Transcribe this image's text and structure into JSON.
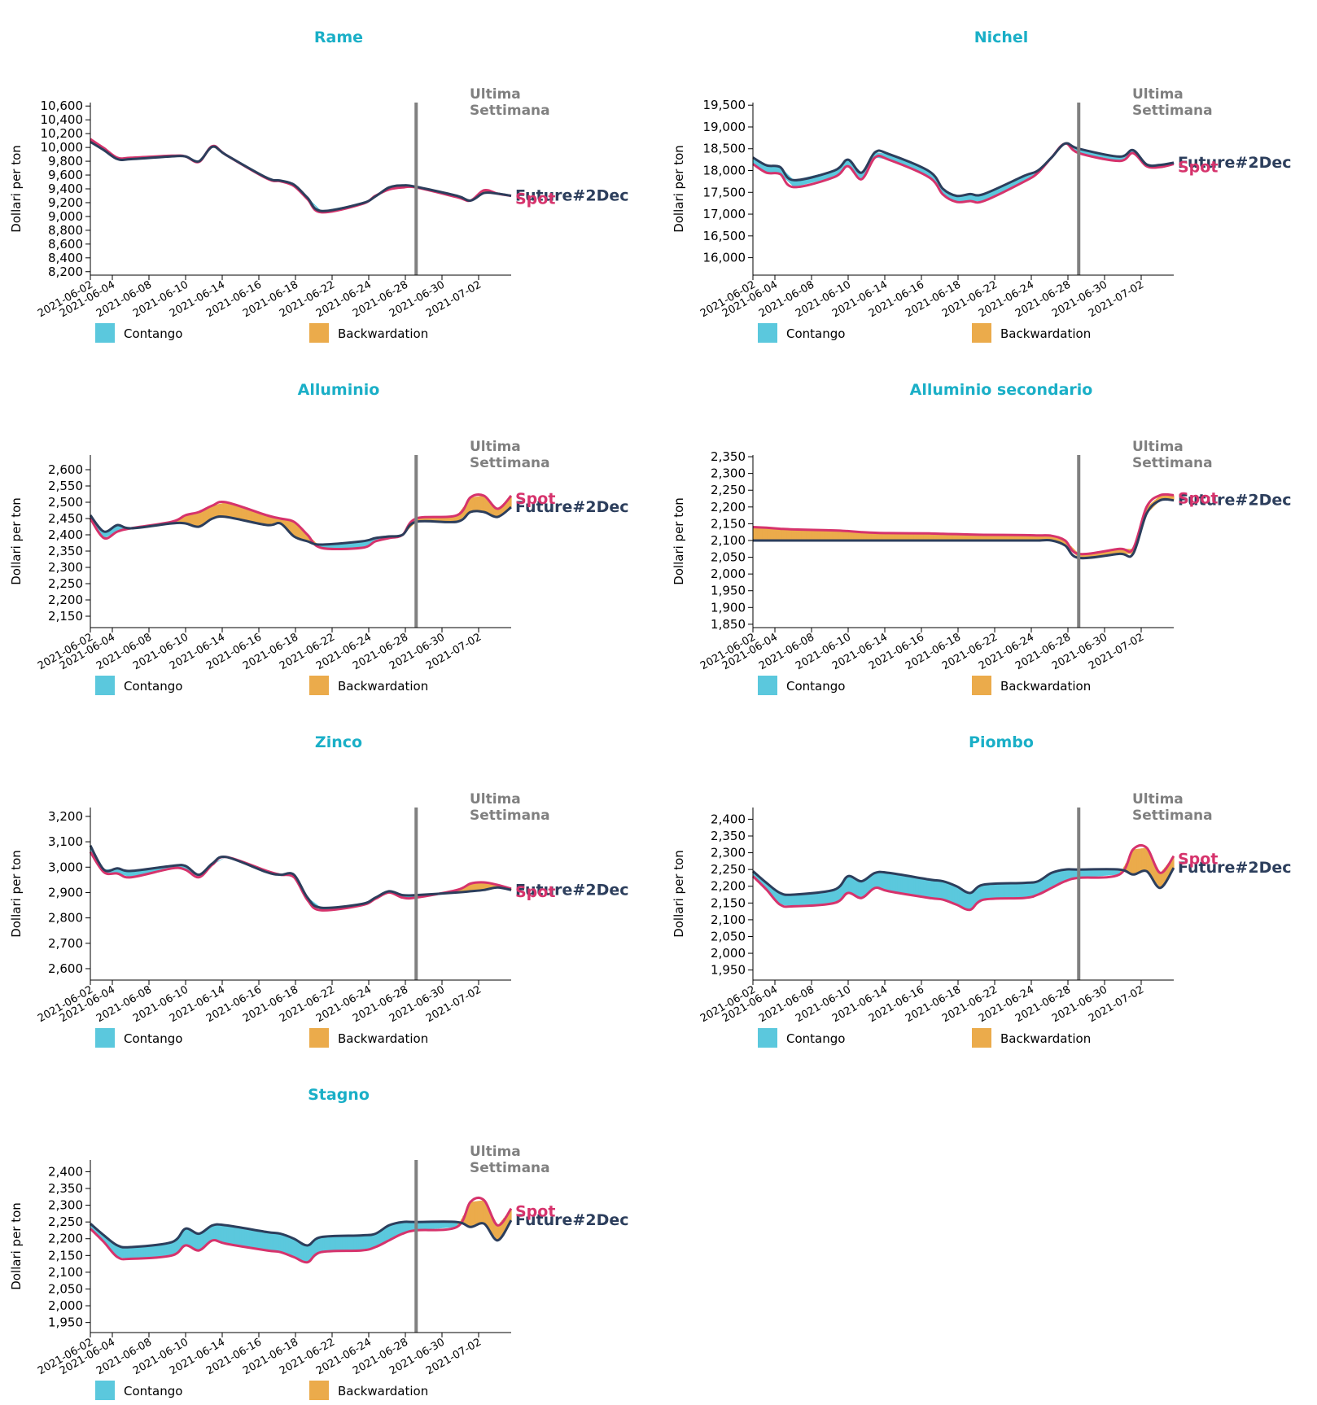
{
  "common": {
    "ylabel": "Dollari per ton",
    "marker_label_line1": "Ultima",
    "marker_label_line2": "Settimana",
    "marker_date": "2021-06-25",
    "legend": [
      "Contango",
      "Backwardation"
    ],
    "series_names": [
      "Spot",
      "Future#2Dec"
    ],
    "colors": {
      "title": "#1aafc7",
      "spot": "#d6336c",
      "future": "#2c3e5c",
      "contango": "#5bc8dd",
      "backwardation": "#ebab4b",
      "marker": "#808080",
      "marker_text": "#808080"
    },
    "x_ticks": [
      "2021-06-02",
      "2021-06-04",
      "2021-06-08",
      "2021-06-10",
      "2021-06-14",
      "2021-06-16",
      "2021-06-18",
      "2021-06-22",
      "2021-06-24",
      "2021-06-28",
      "2021-06-30",
      "2021-07-02"
    ]
  },
  "chart_data": [
    {
      "type": "area",
      "title": "Rame",
      "ylim": [
        8150,
        10650
      ],
      "y_ticks": [
        "8,200",
        "8,400",
        "8,600",
        "8,800",
        "9,000",
        "9,200",
        "9,400",
        "9,600",
        "9,800",
        "10,000",
        "10,200",
        "10,400",
        "10,600"
      ],
      "x": [
        "2021-06-01",
        "2021-06-02",
        "2021-06-03",
        "2021-06-04",
        "2021-06-07",
        "2021-06-08",
        "2021-06-09",
        "2021-06-10",
        "2021-06-11",
        "2021-06-14",
        "2021-06-15",
        "2021-06-16",
        "2021-06-17",
        "2021-06-18",
        "2021-06-21",
        "2021-06-22",
        "2021-06-23",
        "2021-06-24",
        "2021-06-25",
        "2021-06-28",
        "2021-06-29",
        "2021-06-30",
        "2021-07-01",
        "2021-07-02"
      ],
      "series": [
        {
          "name": "Spot",
          "values": [
            10120,
            9990,
            9850,
            9850,
            9880,
            9870,
            9790,
            10020,
            9890,
            9550,
            9510,
            9440,
            9250,
            9060,
            9180,
            9300,
            9390,
            9420,
            9420,
            9280,
            9230,
            9380,
            9330,
            9300
          ]
        },
        {
          "name": "Future#2Dec",
          "values": [
            10080,
            9960,
            9830,
            9830,
            9870,
            9870,
            9800,
            10010,
            9890,
            9560,
            9520,
            9460,
            9270,
            9080,
            9190,
            9290,
            9420,
            9450,
            9430,
            9300,
            9230,
            9340,
            9330,
            9300
          ]
        }
      ]
    },
    {
      "type": "area",
      "title": "Nichel",
      "ylim": [
        15600,
        19560
      ],
      "y_ticks": [
        "16,000",
        "16,500",
        "17,000",
        "17,500",
        "18,000",
        "18,500",
        "19,000",
        "19,500"
      ],
      "x": [
        "2021-06-01",
        "2021-06-02",
        "2021-06-03",
        "2021-06-04",
        "2021-06-07",
        "2021-06-08",
        "2021-06-09",
        "2021-06-10",
        "2021-06-11",
        "2021-06-14",
        "2021-06-15",
        "2021-06-16",
        "2021-06-17",
        "2021-06-18",
        "2021-06-21",
        "2021-06-22",
        "2021-06-23",
        "2021-06-24",
        "2021-06-25",
        "2021-06-28",
        "2021-06-29",
        "2021-06-30",
        "2021-07-01",
        "2021-07-02"
      ],
      "series": [
        {
          "name": "Spot",
          "values": [
            18150,
            17950,
            17920,
            17620,
            17850,
            18100,
            17800,
            18300,
            18250,
            17840,
            17450,
            17280,
            17300,
            17300,
            17750,
            17950,
            18300,
            18620,
            18400,
            18220,
            18400,
            18100,
            18080,
            18150
          ]
        },
        {
          "name": "Future#2Dec",
          "values": [
            18300,
            18120,
            18080,
            17780,
            18000,
            18250,
            17950,
            18420,
            18380,
            17980,
            17580,
            17420,
            17460,
            17460,
            17880,
            18000,
            18300,
            18620,
            18500,
            18320,
            18470,
            18140,
            18130,
            18180
          ]
        }
      ]
    },
    {
      "type": "area",
      "title": "Alluminio",
      "ylim": [
        2115,
        2645
      ],
      "y_ticks": [
        "2,150",
        "2,200",
        "2,250",
        "2,300",
        "2,350",
        "2,400",
        "2,450",
        "2,500",
        "2,550",
        "2,600"
      ],
      "x": [
        "2021-06-01",
        "2021-06-02",
        "2021-06-03",
        "2021-06-04",
        "2021-06-07",
        "2021-06-08",
        "2021-06-09",
        "2021-06-10",
        "2021-06-11",
        "2021-06-14",
        "2021-06-15",
        "2021-06-16",
        "2021-06-17",
        "2021-06-18",
        "2021-06-21",
        "2021-06-22",
        "2021-06-23",
        "2021-06-24",
        "2021-06-25",
        "2021-06-28",
        "2021-06-29",
        "2021-06-30",
        "2021-07-01",
        "2021-07-02"
      ],
      "series": [
        {
          "name": "Spot",
          "values": [
            2450,
            2390,
            2410,
            2420,
            2440,
            2460,
            2470,
            2490,
            2500,
            2460,
            2450,
            2440,
            2400,
            2360,
            2360,
            2380,
            2390,
            2400,
            2450,
            2460,
            2515,
            2520,
            2480,
            2520
          ]
        },
        {
          "name": "Future#2Dec",
          "values": [
            2460,
            2410,
            2430,
            2420,
            2435,
            2435,
            2425,
            2450,
            2455,
            2430,
            2435,
            2395,
            2380,
            2370,
            2380,
            2390,
            2395,
            2400,
            2440,
            2440,
            2470,
            2470,
            2455,
            2485
          ]
        }
      ]
    },
    {
      "type": "area",
      "title": "Alluminio secondario",
      "ylim": [
        1840,
        2355
      ],
      "y_ticks": [
        "1,850",
        "1,900",
        "1,950",
        "2,000",
        "2,050",
        "2,100",
        "2,150",
        "2,200",
        "2,250",
        "2,300",
        "2,350"
      ],
      "x": [
        "2021-06-01",
        "2021-06-02",
        "2021-06-03",
        "2021-06-04",
        "2021-06-07",
        "2021-06-08",
        "2021-06-09",
        "2021-06-10",
        "2021-06-11",
        "2021-06-14",
        "2021-06-15",
        "2021-06-16",
        "2021-06-17",
        "2021-06-18",
        "2021-06-21",
        "2021-06-22",
        "2021-06-23",
        "2021-06-24",
        "2021-06-25",
        "2021-06-28",
        "2021-06-29",
        "2021-06-30",
        "2021-07-01",
        "2021-07-02"
      ],
      "series": [
        {
          "name": "Spot",
          "values": [
            2140,
            2138,
            2135,
            2133,
            2130,
            2128,
            2125,
            2123,
            2122,
            2121,
            2120,
            2119,
            2118,
            2117,
            2116,
            2115,
            2114,
            2100,
            2060,
            2075,
            2075,
            2200,
            2235,
            2235
          ]
        },
        {
          "name": "Future#2Dec",
          "values": [
            2100,
            2100,
            2100,
            2100,
            2100,
            2100,
            2100,
            2100,
            2100,
            2100,
            2100,
            2100,
            2100,
            2100,
            2100,
            2100,
            2100,
            2085,
            2048,
            2060,
            2060,
            2180,
            2220,
            2220
          ]
        }
      ]
    },
    {
      "type": "area",
      "title": "Zinco",
      "ylim": [
        2555,
        3235
      ],
      "y_ticks": [
        "2,600",
        "2,700",
        "2,800",
        "2,900",
        "3,000",
        "3,100",
        "3,200"
      ],
      "x": [
        "2021-06-01",
        "2021-06-02",
        "2021-06-03",
        "2021-06-04",
        "2021-06-07",
        "2021-06-08",
        "2021-06-09",
        "2021-06-10",
        "2021-06-11",
        "2021-06-14",
        "2021-06-15",
        "2021-06-16",
        "2021-06-17",
        "2021-06-18",
        "2021-06-21",
        "2021-06-22",
        "2021-06-23",
        "2021-06-24",
        "2021-06-25",
        "2021-06-28",
        "2021-06-29",
        "2021-06-30",
        "2021-07-01",
        "2021-07-02"
      ],
      "series": [
        {
          "name": "Spot",
          "values": [
            3060,
            2980,
            2975,
            2960,
            2995,
            2990,
            2960,
            3010,
            3040,
            2985,
            2970,
            2960,
            2870,
            2830,
            2850,
            2875,
            2900,
            2880,
            2880,
            2910,
            2935,
            2940,
            2930,
            2915
          ]
        },
        {
          "name": "Future#2Dec",
          "values": [
            3085,
            2990,
            2995,
            2985,
            3005,
            3005,
            2970,
            3015,
            3040,
            2980,
            2970,
            2970,
            2880,
            2840,
            2855,
            2880,
            2905,
            2890,
            2890,
            2900,
            2905,
            2910,
            2920,
            2910
          ]
        }
      ]
    },
    {
      "type": "area",
      "title": "Piombo",
      "ylim": [
        1920,
        2435
      ],
      "y_ticks": [
        "1,950",
        "2,000",
        "2,050",
        "2,100",
        "2,150",
        "2,200",
        "2,250",
        "2,300",
        "2,350",
        "2,400"
      ],
      "x": [
        "2021-06-01",
        "2021-06-02",
        "2021-06-03",
        "2021-06-04",
        "2021-06-07",
        "2021-06-08",
        "2021-06-09",
        "2021-06-10",
        "2021-06-11",
        "2021-06-14",
        "2021-06-15",
        "2021-06-16",
        "2021-06-17",
        "2021-06-18",
        "2021-06-21",
        "2021-06-22",
        "2021-06-23",
        "2021-06-24",
        "2021-06-25",
        "2021-06-28",
        "2021-06-29",
        "2021-06-30",
        "2021-07-01",
        "2021-07-02"
      ],
      "series": [
        {
          "name": "Spot",
          "values": [
            2230,
            2190,
            2145,
            2140,
            2150,
            2180,
            2165,
            2195,
            2185,
            2165,
            2160,
            2145,
            2130,
            2160,
            2165,
            2175,
            2195,
            2215,
            2225,
            2235,
            2310,
            2315,
            2240,
            2290
          ]
        },
        {
          "name": "Future#2Dec",
          "values": [
            2245,
            2210,
            2180,
            2175,
            2190,
            2230,
            2215,
            2240,
            2240,
            2220,
            2215,
            2200,
            2180,
            2205,
            2210,
            2215,
            2240,
            2250,
            2250,
            2250,
            2235,
            2245,
            2195,
            2255
          ]
        }
      ]
    },
    {
      "type": "area",
      "title": "Stagno",
      "ylim": [
        1920,
        2435
      ],
      "y_ticks": [
        "1,950",
        "2,000",
        "2,050",
        "2,100",
        "2,150",
        "2,200",
        "2,250",
        "2,300",
        "2,350",
        "2,400"
      ],
      "x": [
        "2021-06-01",
        "2021-06-02",
        "2021-06-03",
        "2021-06-04",
        "2021-06-07",
        "2021-06-08",
        "2021-06-09",
        "2021-06-10",
        "2021-06-11",
        "2021-06-14",
        "2021-06-15",
        "2021-06-16",
        "2021-06-17",
        "2021-06-18",
        "2021-06-21",
        "2021-06-22",
        "2021-06-23",
        "2021-06-24",
        "2021-06-25",
        "2021-06-28",
        "2021-06-29",
        "2021-06-30",
        "2021-07-01",
        "2021-07-02"
      ],
      "series": [
        {
          "name": "Spot",
          "values": [
            2230,
            2190,
            2145,
            2140,
            2150,
            2180,
            2165,
            2195,
            2185,
            2165,
            2160,
            2145,
            2130,
            2160,
            2165,
            2175,
            2195,
            2215,
            2225,
            2235,
            2310,
            2315,
            2240,
            2290
          ]
        },
        {
          "name": "Future#2Dec",
          "values": [
            2245,
            2210,
            2180,
            2175,
            2190,
            2230,
            2215,
            2240,
            2240,
            2220,
            2215,
            2200,
            2180,
            2205,
            2210,
            2215,
            2240,
            2250,
            2250,
            2250,
            2235,
            2245,
            2195,
            2255
          ]
        }
      ]
    }
  ]
}
